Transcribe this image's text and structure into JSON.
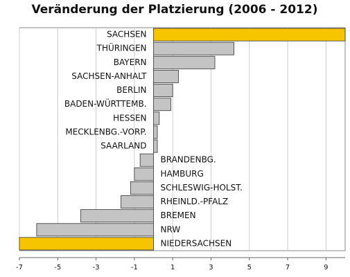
{
  "chart_data": {
    "type": "hbar",
    "title": "Veränderung der Platzierung (2006 - 2012)",
    "categories": [
      "SACHSEN",
      "THÜRINGEN",
      "BAYERN",
      "SACHSEN-ANHALT",
      "BERLIN",
      "BADEN-WÜRTTEMB.",
      "HESSEN",
      "MECKLENBG.-VORP.",
      "SAARLAND",
      "BRANDENBG.",
      "HAMBURG",
      "SCHLESWIG-HOLST.",
      "RHEINLD.-PFALZ",
      "BREMEN",
      "NRW",
      "NIEDERSACHSEN"
    ],
    "values": [
      10,
      4.2,
      3.2,
      1.3,
      1.0,
      0.9,
      0.3,
      0.2,
      0.2,
      -0.7,
      -1.0,
      -1.2,
      -1.7,
      -3.8,
      -6.1,
      -7
    ],
    "colors": [
      "#f6c500",
      "#c4c4c4",
      "#c4c4c4",
      "#c4c4c4",
      "#c4c4c4",
      "#c4c4c4",
      "#c4c4c4",
      "#c4c4c4",
      "#c4c4c4",
      "#c4c4c4",
      "#c4c4c4",
      "#c4c4c4",
      "#c4c4c4",
      "#c4c4c4",
      "#c4c4c4",
      "#f6c500"
    ],
    "xlim": [
      -7,
      10
    ],
    "xticks": [
      -7,
      -5,
      -3,
      -1,
      1,
      3,
      5,
      7,
      9
    ],
    "grid": true
  }
}
